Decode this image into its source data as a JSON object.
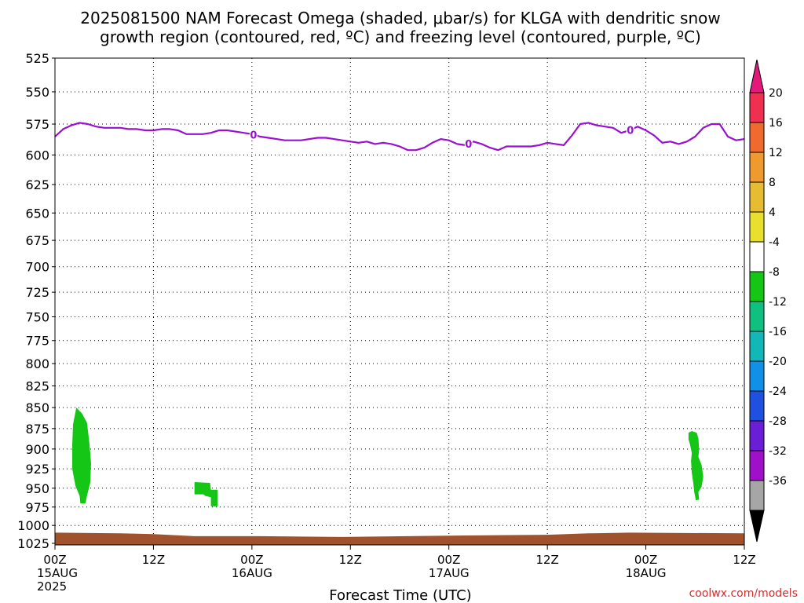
{
  "chart_data": {
    "type": "heatmap",
    "title_line1": "2025081500 NAM Forecast Omega (shaded, μbar/s) for KLGA with dendritic snow",
    "title_line2": "growth region (contoured, red, ºC) and freezing level (contoured, purple, ºC)",
    "xlabel": "Forecast Time (UTC)",
    "credit": "coolwx.com/models",
    "x_range_hours": [
      0,
      84
    ],
    "y_range_mb": [
      525,
      1025
    ],
    "y_scale": "log-pressure",
    "y_inverted": true,
    "grid": true,
    "y_ticks": [
      "525",
      "550",
      "575",
      "600",
      "625",
      "650",
      "675",
      "700",
      "725",
      "750",
      "775",
      "800",
      "825",
      "850",
      "875",
      "900",
      "925",
      "950",
      "975",
      "1000",
      "1025"
    ],
    "x_ticks": [
      {
        "hour": 0,
        "line1": "00Z",
        "line2": "15AUG",
        "line3": "2025"
      },
      {
        "hour": 12,
        "line1": "12Z",
        "line2": "",
        "line3": ""
      },
      {
        "hour": 24,
        "line1": "00Z",
        "line2": "16AUG",
        "line3": ""
      },
      {
        "hour": 36,
        "line1": "12Z",
        "line2": "",
        "line3": ""
      },
      {
        "hour": 48,
        "line1": "00Z",
        "line2": "17AUG",
        "line3": ""
      },
      {
        "hour": 60,
        "line1": "12Z",
        "line2": "",
        "line3": ""
      },
      {
        "hour": 72,
        "line1": "00Z",
        "line2": "18AUG",
        "line3": ""
      },
      {
        "hour": 84,
        "line1": "12Z",
        "line2": "",
        "line3": ""
      }
    ],
    "colorbar": {
      "labels": [
        "20",
        "16",
        "12",
        "8",
        "4",
        "-4",
        "-8",
        "-12",
        "-16",
        "-20",
        "-24",
        "-28",
        "-32",
        "-36"
      ],
      "colors_top_to_bottom": [
        "#f03050",
        "#f06a30",
        "#ee9a2e",
        "#e6bd32",
        "#e8e02e",
        "#ffffff",
        "#16c616",
        "#10c080",
        "#12b8b8",
        "#1090e6",
        "#2050e0",
        "#6a1ed6",
        "#a010c8",
        "#a6a6a6"
      ],
      "top_arrow_color": "#e2187a",
      "bottom_arrow_color": "#000000"
    },
    "freezing_level": {
      "color": "#9a0fd0",
      "label": "0",
      "label_hours": [
        24.2,
        50.4,
        70.1
      ],
      "points": [
        [
          0,
          585
        ],
        [
          1,
          579
        ],
        [
          2,
          576
        ],
        [
          3,
          574
        ],
        [
          4,
          575
        ],
        [
          5,
          577
        ],
        [
          6,
          578
        ],
        [
          7,
          578
        ],
        [
          8,
          578
        ],
        [
          9,
          579
        ],
        [
          10,
          579
        ],
        [
          11,
          580
        ],
        [
          12,
          580
        ],
        [
          13,
          579
        ],
        [
          14,
          579
        ],
        [
          15,
          580
        ],
        [
          16,
          583
        ],
        [
          17,
          583
        ],
        [
          18,
          583
        ],
        [
          19,
          582
        ],
        [
          20,
          580
        ],
        [
          21,
          580
        ],
        [
          22,
          581
        ],
        [
          23,
          582
        ],
        [
          24,
          583
        ],
        [
          25,
          585
        ],
        [
          26,
          586
        ],
        [
          27,
          587
        ],
        [
          28,
          588
        ],
        [
          29,
          588
        ],
        [
          30,
          588
        ],
        [
          31,
          587
        ],
        [
          32,
          586
        ],
        [
          33,
          586
        ],
        [
          34,
          587
        ],
        [
          35,
          588
        ],
        [
          36,
          589
        ],
        [
          37,
          590
        ],
        [
          38,
          589
        ],
        [
          39,
          591
        ],
        [
          40,
          590
        ],
        [
          41,
          591
        ],
        [
          42,
          593
        ],
        [
          43,
          596
        ],
        [
          44,
          596
        ],
        [
          45,
          594
        ],
        [
          46,
          590
        ],
        [
          47,
          587
        ],
        [
          48,
          588
        ],
        [
          49,
          591
        ],
        [
          50,
          592
        ],
        [
          51,
          589
        ],
        [
          52,
          591
        ],
        [
          53,
          594
        ],
        [
          54,
          596
        ],
        [
          55,
          593
        ],
        [
          56,
          593
        ],
        [
          57,
          593
        ],
        [
          58,
          593
        ],
        [
          59,
          592
        ],
        [
          60,
          590
        ],
        [
          61,
          591
        ],
        [
          62,
          592
        ],
        [
          63,
          584
        ],
        [
          64,
          575
        ],
        [
          65,
          574
        ],
        [
          66,
          576
        ],
        [
          67,
          577
        ],
        [
          68,
          578
        ],
        [
          69,
          582
        ],
        [
          70,
          580
        ],
        [
          71,
          577
        ],
        [
          72,
          580
        ],
        [
          73,
          584
        ],
        [
          74,
          590
        ],
        [
          75,
          589
        ],
        [
          76,
          591
        ],
        [
          77,
          589
        ],
        [
          78,
          585
        ],
        [
          79,
          578
        ],
        [
          80,
          575
        ],
        [
          81,
          575
        ],
        [
          82,
          585
        ],
        [
          83,
          588
        ],
        [
          84,
          587
        ]
      ]
    },
    "omega_shaded": [
      {
        "value_range": [
          -8,
          -4
        ],
        "color": "#16c616",
        "polygon": [
          [
            2.6,
            850
          ],
          [
            3.3,
            857
          ],
          [
            3.9,
            868
          ],
          [
            4.2,
            893
          ],
          [
            4.4,
            918
          ],
          [
            4.3,
            943
          ],
          [
            3.9,
            960
          ],
          [
            3.7,
            970
          ],
          [
            3.1,
            970
          ],
          [
            3.0,
            960
          ],
          [
            2.5,
            947
          ],
          [
            2.1,
            925
          ],
          [
            2.1,
            895
          ],
          [
            2.2,
            870
          ]
        ]
      },
      {
        "value_range": [
          -8,
          -4
        ],
        "color": "#16c616",
        "polygon": [
          [
            17.0,
            942
          ],
          [
            18.9,
            943
          ],
          [
            19.0,
            952
          ],
          [
            19.8,
            952
          ],
          [
            19.8,
            974
          ],
          [
            19.0,
            974
          ],
          [
            19.0,
            962
          ],
          [
            18.3,
            960
          ],
          [
            18.1,
            958
          ],
          [
            17.0,
            958
          ]
        ]
      },
      {
        "value_range": [
          -8,
          -4
        ],
        "color": "#16c616",
        "polygon": [
          [
            77.2,
            880
          ],
          [
            77.6,
            878
          ],
          [
            78.2,
            880
          ],
          [
            78.4,
            887
          ],
          [
            78.5,
            900
          ],
          [
            78.4,
            910
          ],
          [
            78.8,
            920
          ],
          [
            79.0,
            935
          ],
          [
            78.8,
            948
          ],
          [
            78.4,
            955
          ],
          [
            78.5,
            965
          ],
          [
            78.1,
            966
          ],
          [
            77.9,
            955
          ],
          [
            77.8,
            945
          ],
          [
            77.6,
            930
          ],
          [
            77.5,
            915
          ],
          [
            77.6,
            905
          ],
          [
            77.4,
            895
          ],
          [
            77.2,
            888
          ]
        ]
      }
    ],
    "surface": {
      "color": "#a0522d",
      "points": [
        [
          0,
          1010
        ],
        [
          8,
          1011
        ],
        [
          12,
          1012
        ],
        [
          17,
          1015
        ],
        [
          25,
          1015
        ],
        [
          35,
          1016
        ],
        [
          50,
          1014
        ],
        [
          60,
          1013
        ],
        [
          65,
          1011
        ],
        [
          70,
          1010
        ],
        [
          84,
          1011
        ]
      ]
    }
  }
}
